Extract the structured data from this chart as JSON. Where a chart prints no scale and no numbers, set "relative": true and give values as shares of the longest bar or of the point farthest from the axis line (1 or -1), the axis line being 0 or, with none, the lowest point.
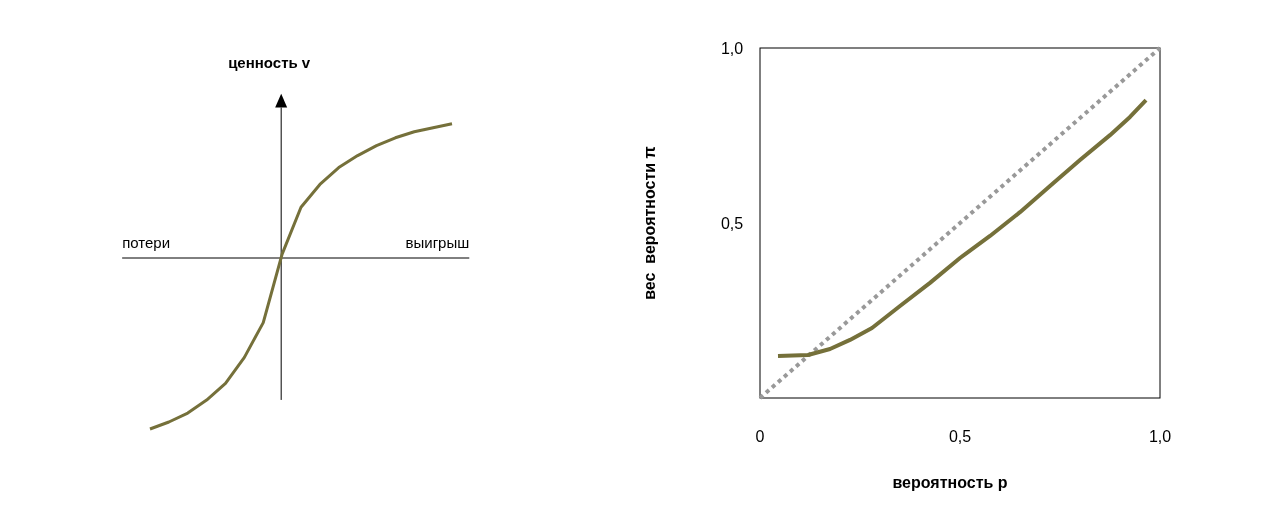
{
  "chart_data": [
    {
      "type": "line",
      "relative": true,
      "ylabel": "ценность v",
      "annotations": [
        "потери",
        "выигрыш"
      ],
      "series": [
        {
          "color": "#75703a",
          "values": [
            -1.0,
            -0.959,
            -0.907,
            -0.831,
            -0.733,
            -0.581,
            -0.378,
            0.023,
            0.297,
            0.43,
            0.529,
            0.599,
            0.657,
            0.703,
            0.738,
            0.762,
            0.785
          ]
        }
      ],
      "categories": [
        null,
        null,
        null,
        null,
        null,
        null,
        null,
        null,
        null,
        null,
        null,
        null,
        null,
        null,
        null,
        null,
        null
      ]
    },
    {
      "type": "line",
      "xlabel": "вероятность p",
      "ylabel": "вес  вероятности π",
      "xlim": [
        0,
        1
      ],
      "ylim": [
        0,
        1
      ],
      "xticks": [
        {
          "value": 0,
          "label": "0"
        },
        {
          "value": 0.5,
          "label": "0,5"
        },
        {
          "value": 1,
          "label": "1,0"
        }
      ],
      "yticks": [
        {
          "value": 0.5,
          "label": "0,5"
        },
        {
          "value": 1,
          "label": "1,0"
        }
      ],
      "grid": false,
      "legend": false,
      "series": [
        {
          "color": "#999999",
          "line_style": "dotted",
          "x": [
            0,
            1
          ],
          "values": [
            0,
            1
          ]
        },
        {
          "color": "#75703a",
          "line_style": "solid",
          "x": [
            0.045,
            0.12,
            0.175,
            0.225,
            0.28,
            0.35,
            0.425,
            0.5,
            0.575,
            0.65,
            0.725,
            0.8,
            0.875,
            0.925,
            0.965
          ],
          "values": [
            0.12,
            0.123,
            0.14,
            0.166,
            0.2,
            0.263,
            0.329,
            0.4,
            0.463,
            0.531,
            0.606,
            0.68,
            0.751,
            0.803,
            0.851
          ]
        }
      ]
    }
  ]
}
